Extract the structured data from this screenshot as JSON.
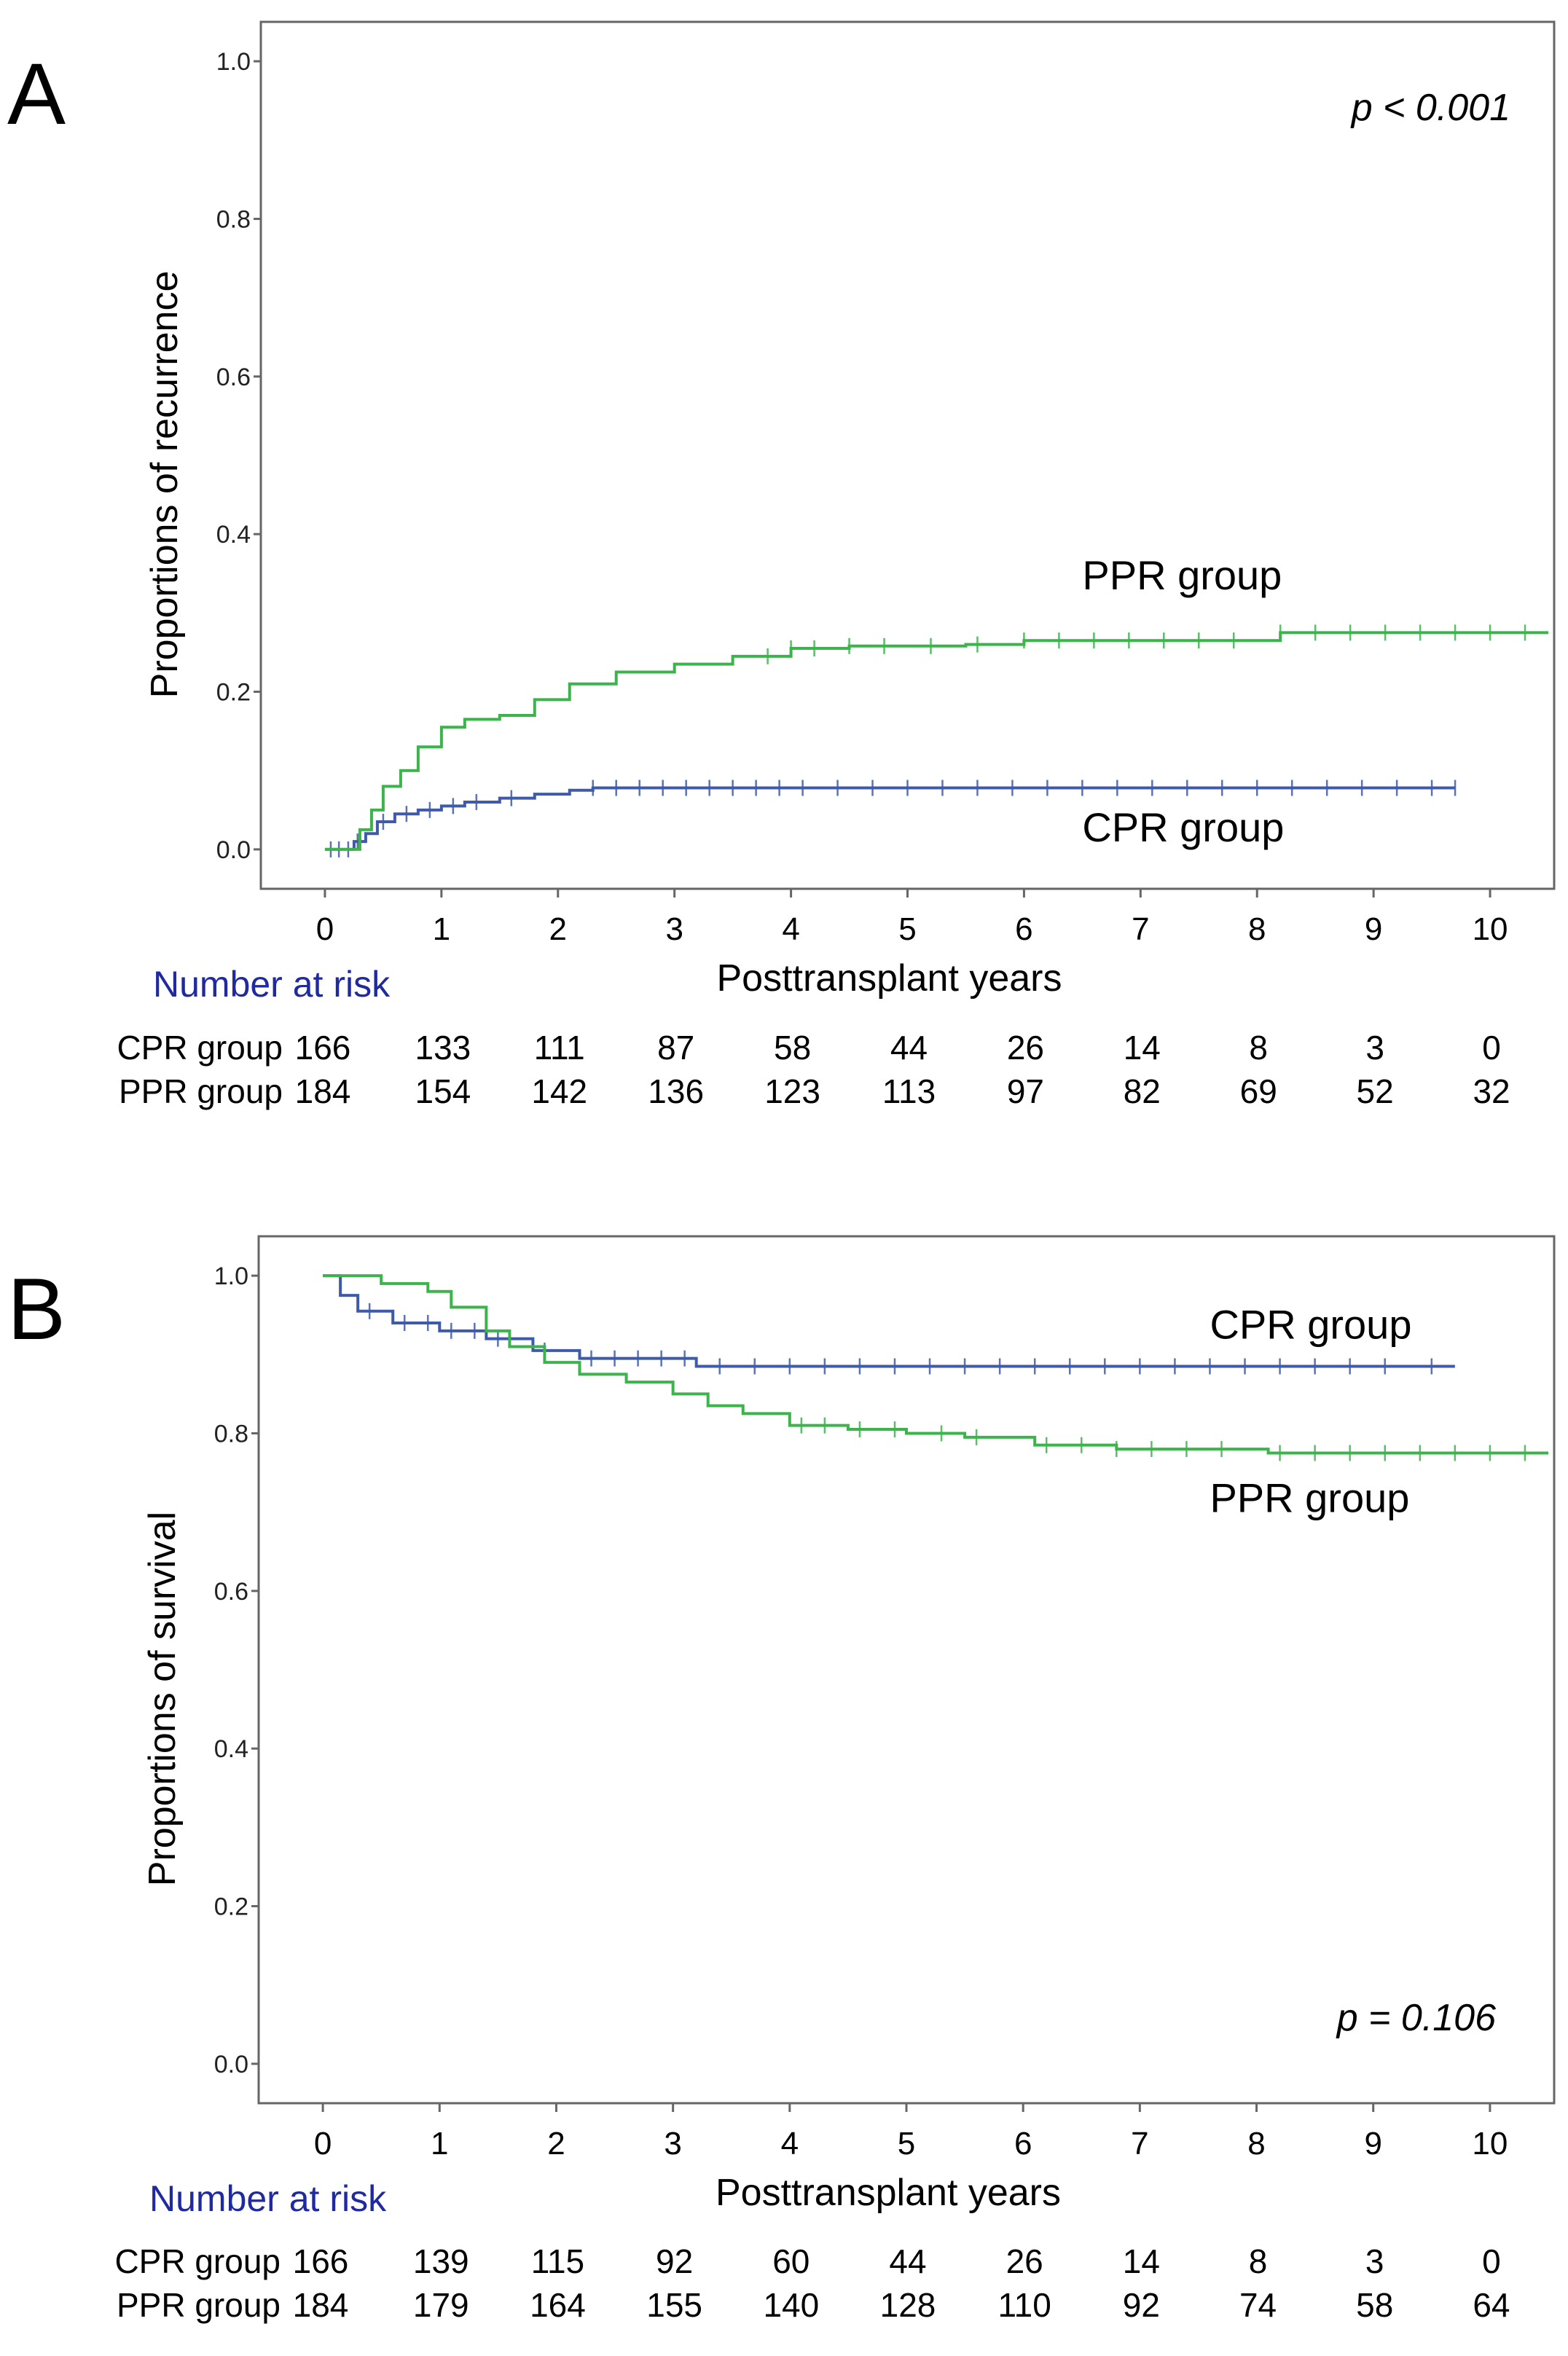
{
  "chart_data": [
    {
      "panel": "A",
      "type": "line",
      "ylabel": "Proportions of recurrence",
      "xlabel": "Posttransplant years",
      "xlim": [
        -0.55,
        10.55
      ],
      "ylim": [
        -0.05,
        1.05
      ],
      "xticks": [
        "0",
        "1",
        "2",
        "3",
        "4",
        "5",
        "6",
        "7",
        "8",
        "9",
        "10"
      ],
      "yticks": [
        "0.0",
        "0.2",
        "0.4",
        "0.6",
        "0.8",
        "1.0"
      ],
      "pvalue": "p < 0.001",
      "series": [
        {
          "label": "CPR group",
          "color": "#3f5aa8",
          "points": [
            [
              0,
              0
            ],
            [
              0.15,
              0
            ],
            [
              0.25,
              0.01
            ],
            [
              0.35,
              0.02
            ],
            [
              0.45,
              0.035
            ],
            [
              0.6,
              0.045
            ],
            [
              0.8,
              0.05
            ],
            [
              1.0,
              0.055
            ],
            [
              1.2,
              0.06
            ],
            [
              1.5,
              0.065
            ],
            [
              1.8,
              0.07
            ],
            [
              2.1,
              0.075
            ],
            [
              2.3,
              0.078
            ],
            [
              9.7,
              0.078
            ]
          ],
          "censor_x": [
            0.05,
            0.12,
            0.2,
            0.28,
            0.5,
            0.7,
            0.9,
            1.1,
            1.3,
            1.6,
            2.3,
            2.5,
            2.7,
            2.9,
            3.1,
            3.3,
            3.5,
            3.7,
            3.9,
            4.1,
            4.4,
            4.7,
            5.0,
            5.3,
            5.6,
            5.9,
            6.2,
            6.5,
            6.8,
            7.1,
            7.4,
            7.7,
            8.0,
            8.3,
            8.6,
            8.9,
            9.2,
            9.5,
            9.7
          ]
        },
        {
          "label": "PPR group",
          "color": "#3cb44b",
          "points": [
            [
              0,
              0
            ],
            [
              0.2,
              0
            ],
            [
              0.3,
              0.025
            ],
            [
              0.4,
              0.05
            ],
            [
              0.5,
              0.08
            ],
            [
              0.65,
              0.1
            ],
            [
              0.8,
              0.13
            ],
            [
              1.0,
              0.155
            ],
            [
              1.2,
              0.165
            ],
            [
              1.5,
              0.17
            ],
            [
              1.8,
              0.19
            ],
            [
              2.1,
              0.21
            ],
            [
              2.5,
              0.225
            ],
            [
              3.0,
              0.235
            ],
            [
              3.5,
              0.245
            ],
            [
              4.0,
              0.255
            ],
            [
              4.5,
              0.258
            ],
            [
              5.5,
              0.26
            ],
            [
              6.0,
              0.265
            ],
            [
              8.0,
              0.265
            ],
            [
              8.2,
              0.275
            ],
            [
              10.5,
              0.275
            ]
          ],
          "censor_x": [
            3.8,
            4.0,
            4.2,
            4.5,
            4.8,
            5.2,
            5.6,
            6.0,
            6.3,
            6.6,
            6.9,
            7.2,
            7.5,
            7.8,
            8.2,
            8.5,
            8.8,
            9.1,
            9.4,
            9.7,
            10.0,
            10.3
          ]
        }
      ],
      "annotations": [
        {
          "text": "PPR group",
          "x": 6.5,
          "y": 0.33
        },
        {
          "text": "CPR group",
          "x": 6.5,
          "y": 0.01
        }
      ],
      "risk_table": {
        "title": "Number at risk",
        "rows": [
          {
            "label": "CPR group",
            "values": [
              "166",
              "133",
              "111",
              "87",
              "58",
              "44",
              "26",
              "14",
              "8",
              "3",
              "0"
            ]
          },
          {
            "label": "PPR group",
            "values": [
              "184",
              "154",
              "142",
              "136",
              "123",
              "113",
              "97",
              "82",
              "69",
              "52",
              "32"
            ]
          }
        ]
      }
    },
    {
      "panel": "B",
      "type": "line",
      "ylabel": "Proportions of survival",
      "xlabel": "Posttransplant years",
      "xlim": [
        -0.55,
        10.55
      ],
      "ylim": [
        -0.05,
        1.05
      ],
      "xticks": [
        "0",
        "1",
        "2",
        "3",
        "4",
        "5",
        "6",
        "7",
        "8",
        "9",
        "10"
      ],
      "yticks": [
        "0.0",
        "0.2",
        "0.4",
        "0.6",
        "0.8",
        "1.0"
      ],
      "pvalue": "p = 0.106",
      "series": [
        {
          "label": "CPR group",
          "color": "#3f5aa8",
          "points": [
            [
              0,
              1.0
            ],
            [
              0.15,
              0.975
            ],
            [
              0.3,
              0.955
            ],
            [
              0.6,
              0.94
            ],
            [
              1.0,
              0.93
            ],
            [
              1.4,
              0.92
            ],
            [
              1.8,
              0.905
            ],
            [
              2.2,
              0.895
            ],
            [
              3.0,
              0.895
            ],
            [
              3.2,
              0.885
            ],
            [
              9.7,
              0.885
            ]
          ],
          "censor_x": [
            0.4,
            0.7,
            0.9,
            1.1,
            1.3,
            1.5,
            1.9,
            2.3,
            2.5,
            2.7,
            2.9,
            3.1,
            3.4,
            3.7,
            4.0,
            4.3,
            4.6,
            4.9,
            5.2,
            5.5,
            5.8,
            6.1,
            6.4,
            6.7,
            7.0,
            7.3,
            7.6,
            7.9,
            8.2,
            8.5,
            8.8,
            9.1,
            9.5
          ]
        },
        {
          "label": "PPR group",
          "color": "#3cb44b",
          "points": [
            [
              0,
              1.0
            ],
            [
              0.4,
              1.0
            ],
            [
              0.5,
              0.99
            ],
            [
              0.9,
              0.98
            ],
            [
              1.1,
              0.96
            ],
            [
              1.4,
              0.93
            ],
            [
              1.6,
              0.91
            ],
            [
              1.9,
              0.89
            ],
            [
              2.2,
              0.875
            ],
            [
              2.6,
              0.865
            ],
            [
              3.0,
              0.85
            ],
            [
              3.3,
              0.835
            ],
            [
              3.6,
              0.825
            ],
            [
              4.0,
              0.81
            ],
            [
              4.5,
              0.805
            ],
            [
              5.0,
              0.8
            ],
            [
              5.5,
              0.795
            ],
            [
              6.0,
              0.795
            ],
            [
              6.1,
              0.785
            ],
            [
              6.8,
              0.78
            ],
            [
              8.0,
              0.78
            ],
            [
              8.1,
              0.775
            ],
            [
              10.5,
              0.775
            ]
          ],
          "censor_x": [
            4.1,
            4.3,
            4.6,
            4.9,
            5.3,
            5.6,
            6.2,
            6.5,
            6.8,
            7.1,
            7.4,
            7.7,
            8.2,
            8.5,
            8.8,
            9.1,
            9.4,
            9.7,
            10.0,
            10.3
          ]
        }
      ],
      "annotations": [
        {
          "text": "CPR group",
          "x": 7.6,
          "y": 0.92
        },
        {
          "text": "PPR group",
          "x": 7.6,
          "y": 0.7
        }
      ],
      "risk_table": {
        "title": "Number at risk",
        "rows": [
          {
            "label": "CPR group",
            "values": [
              "166",
              "139",
              "115",
              "92",
              "60",
              "44",
              "26",
              "14",
              "8",
              "3",
              "0"
            ]
          },
          {
            "label": "PPR group",
            "values": [
              "184",
              "179",
              "164",
              "155",
              "140",
              "128",
              "110",
              "92",
              "74",
              "58",
              "64"
            ]
          }
        ]
      }
    }
  ]
}
